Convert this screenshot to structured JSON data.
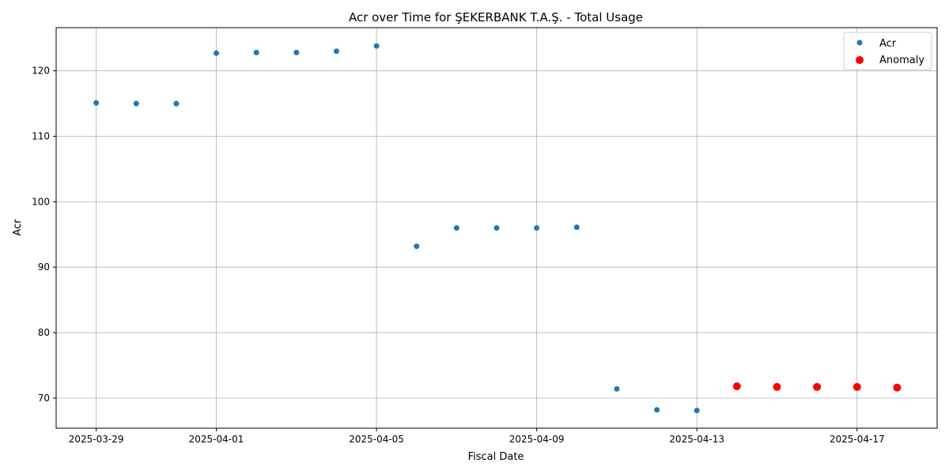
{
  "chart_data": {
    "type": "scatter",
    "title": "Acr over Time for ŞEKERBANK T.A.Ş. - Total Usage",
    "xlabel": "Fiscal Date",
    "ylabel": "Acr",
    "x_range": [
      "2025-03-28",
      "2025-04-19"
    ],
    "ylim": [
      65.4,
      126.6
    ],
    "x_ticks": [
      "2025-03-29",
      "2025-04-01",
      "2025-04-05",
      "2025-04-09",
      "2025-04-13",
      "2025-04-17"
    ],
    "y_ticks": [
      70,
      80,
      90,
      100,
      110,
      120
    ],
    "grid": true,
    "legend_position": "top-right",
    "colors": {
      "acr": "#1f77b4",
      "anomaly": "#ff0000"
    },
    "series": [
      {
        "name": "Acr",
        "points": [
          {
            "x": "2025-03-29",
            "y": 115.1
          },
          {
            "x": "2025-03-30",
            "y": 115.0
          },
          {
            "x": "2025-03-31",
            "y": 115.0
          },
          {
            "x": "2025-04-01",
            "y": 122.7
          },
          {
            "x": "2025-04-02",
            "y": 122.8
          },
          {
            "x": "2025-04-03",
            "y": 122.8
          },
          {
            "x": "2025-04-04",
            "y": 123.0
          },
          {
            "x": "2025-04-05",
            "y": 123.8
          },
          {
            "x": "2025-04-06",
            "y": 93.2
          },
          {
            "x": "2025-04-07",
            "y": 96.0
          },
          {
            "x": "2025-04-08",
            "y": 96.0
          },
          {
            "x": "2025-04-09",
            "y": 96.0
          },
          {
            "x": "2025-04-10",
            "y": 96.1
          },
          {
            "x": "2025-04-11",
            "y": 71.4
          },
          {
            "x": "2025-04-12",
            "y": 68.2
          },
          {
            "x": "2025-04-13",
            "y": 68.1
          }
        ]
      },
      {
        "name": "Anomaly",
        "points": [
          {
            "x": "2025-04-14",
            "y": 71.8
          },
          {
            "x": "2025-04-15",
            "y": 71.7
          },
          {
            "x": "2025-04-16",
            "y": 71.7
          },
          {
            "x": "2025-04-17",
            "y": 71.7
          },
          {
            "x": "2025-04-18",
            "y": 71.6
          }
        ]
      }
    ]
  }
}
